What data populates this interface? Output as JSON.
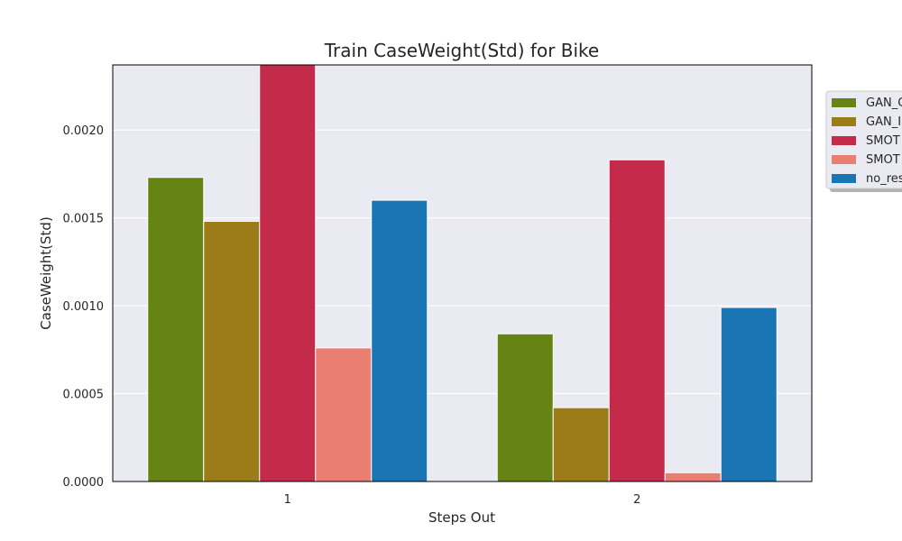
{
  "chart_data": {
    "type": "bar",
    "title": "Train CaseWeight(Std) for Bike",
    "xlabel": "Steps Out",
    "ylabel": "CaseWeight(Std)",
    "categories": [
      "1",
      "2"
    ],
    "ylim": [
      0,
      0.00237
    ],
    "yticks": [
      "0.0000",
      "0.0005",
      "0.0010",
      "0.0015",
      "0.0020"
    ],
    "grid": true,
    "legend_position": "right, partially clipped",
    "series": [
      {
        "name": "GAN_C",
        "color": "#658414",
        "values": [
          0.00173,
          0.00084
        ]
      },
      {
        "name": "GAN_I",
        "color": "#9c7c18",
        "values": [
          0.00148,
          0.00042
        ]
      },
      {
        "name": "SMOT",
        "color": "#c42b4a",
        "values": [
          0.00237,
          0.00183
        ]
      },
      {
        "name": "SMOT",
        "color": "#ea7e73",
        "values": [
          0.00076,
          5e-05
        ]
      },
      {
        "name": "no_res",
        "color": "#1a75b5",
        "values": [
          0.0016,
          0.00099
        ]
      }
    ]
  }
}
